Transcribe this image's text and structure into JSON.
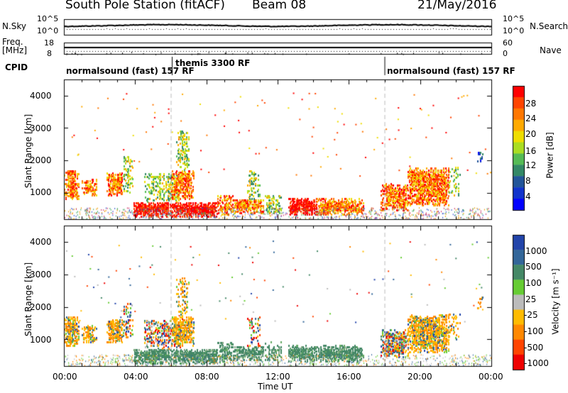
{
  "header": {
    "station": "South Pole Station (fitACF)",
    "beam": "Beam 08",
    "date": "21/May/2016"
  },
  "top_panels": {
    "nsky_label": "N.Sky",
    "nsearch_label": "N.Search",
    "noise_ticks": [
      "10^5",
      "10^0"
    ],
    "freq_label": "Freq.",
    "freq_unit": "[MHz]",
    "freq_ticks": [
      "18",
      "8"
    ],
    "nave_label": "Nave",
    "nave_ticks": [
      "60",
      "0"
    ],
    "cpid_label": "CPID",
    "cpid_segments": [
      {
        "name": "normalsound (fast) 157 RF",
        "start_hour": 0
      },
      {
        "name": "themis 3300 RF",
        "start_hour": 6.3
      },
      {
        "name": "normalsound (fast) 157 RF",
        "start_hour": 18
      }
    ]
  },
  "chart_data": [
    {
      "type": "heatmap",
      "title": "",
      "quantity": "Power",
      "ylabel": "Slant Range [km]",
      "xlabel": "",
      "xlim": [
        0,
        24
      ],
      "ylim": [
        180,
        4500
      ],
      "yticks": [
        "4000",
        "3000",
        "2000",
        "1000"
      ],
      "xticks": [
        "00:00",
        "04:00",
        "08:00",
        "12:00",
        "16:00",
        "20:00",
        "00:00"
      ],
      "colorbar": {
        "label": "Power [dB]",
        "ticks": [
          "28",
          "24",
          "20",
          "16",
          "12",
          "8",
          "4"
        ],
        "colors": [
          "#ff0000",
          "#ff4400",
          "#ff7700",
          "#ffaa00",
          "#eedd00",
          "#aadd22",
          "#55bb55",
          "#338866",
          "#225599",
          "#1133cc",
          "#0000ff"
        ]
      },
      "dashed_marker_hours": [
        6.0,
        18.0
      ]
    },
    {
      "type": "heatmap",
      "title": "",
      "quantity": "Velocity",
      "ylabel": "Slant Range [km]",
      "xlabel": "Time UT",
      "xlim": [
        0,
        24
      ],
      "ylim": [
        180,
        4500
      ],
      "yticks": [
        "4000",
        "3000",
        "2000",
        "1000"
      ],
      "xticks": [
        "00:00",
        "04:00",
        "08:00",
        "12:00",
        "16:00",
        "20:00",
        "00:00"
      ],
      "colorbar": {
        "label": "Velocity [m s⁻¹]",
        "ticks": [
          "1000",
          "500",
          "100",
          "25",
          "-25",
          "-100",
          "-500",
          "-1000"
        ],
        "colors": [
          "#2244aa",
          "#336699",
          "#448866",
          "#66cc33",
          "#bbbbbb",
          "#ffbb00",
          "#ff8800",
          "#ff4400",
          "#ee0000"
        ]
      },
      "dashed_marker_hours": [
        6.0,
        18.0
      ]
    }
  ],
  "echo_regions": [
    {
      "t0": 0.0,
      "t1": 0.8,
      "r0": 800,
      "r1": 1700,
      "p": 0.8,
      "pw": "hi",
      "vel": "neg"
    },
    {
      "t0": 1.0,
      "t1": 1.8,
      "r0": 900,
      "r1": 1400,
      "p": 0.7,
      "pw": "hi",
      "vel": "neg"
    },
    {
      "t0": 2.4,
      "t1": 3.3,
      "r0": 900,
      "r1": 1600,
      "p": 0.8,
      "pw": "hi",
      "vel": "neg"
    },
    {
      "t0": 3.3,
      "t1": 3.9,
      "r0": 1000,
      "r1": 2100,
      "p": 0.4,
      "pw": "mid",
      "vel": "mix"
    },
    {
      "t0": 3.9,
      "t1": 6.0,
      "r0": 250,
      "r1": 700,
      "p": 0.9,
      "pw": "vhi",
      "vel": "low"
    },
    {
      "t0": 4.5,
      "t1": 6.5,
      "r0": 700,
      "r1": 1600,
      "p": 0.35,
      "pw": "mid",
      "vel": "mix"
    },
    {
      "t0": 6.0,
      "t1": 7.3,
      "r0": 800,
      "r1": 1700,
      "p": 0.7,
      "pw": "hi",
      "vel": "neg"
    },
    {
      "t0": 6.3,
      "t1": 7.0,
      "r0": 1700,
      "r1": 2900,
      "p": 0.4,
      "pw": "mid",
      "vel": "neg"
    },
    {
      "t0": 6.0,
      "t1": 8.6,
      "r0": 250,
      "r1": 700,
      "p": 0.9,
      "pw": "vhi",
      "vel": "low"
    },
    {
      "t0": 8.6,
      "t1": 9.5,
      "r0": 300,
      "r1": 900,
      "p": 0.6,
      "pw": "hi",
      "vel": "low"
    },
    {
      "t0": 9.5,
      "t1": 11.2,
      "r0": 350,
      "r1": 800,
      "p": 0.8,
      "pw": "hi",
      "vel": "low"
    },
    {
      "t0": 10.3,
      "t1": 11.0,
      "r0": 800,
      "r1": 1700,
      "p": 0.3,
      "pw": "mid",
      "vel": "mix"
    },
    {
      "t0": 11.3,
      "t1": 12.2,
      "r0": 350,
      "r1": 900,
      "p": 0.5,
      "pw": "mid",
      "vel": "low"
    },
    {
      "t0": 12.6,
      "t1": 14.2,
      "r0": 300,
      "r1": 800,
      "p": 0.8,
      "pw": "vhi",
      "vel": "low"
    },
    {
      "t0": 14.2,
      "t1": 16.8,
      "r0": 300,
      "r1": 800,
      "p": 0.8,
      "pw": "hi",
      "vel": "low"
    },
    {
      "t0": 17.8,
      "t1": 19.3,
      "r0": 450,
      "r1": 1300,
      "p": 0.7,
      "pw": "hi",
      "vel": "mix"
    },
    {
      "t0": 19.3,
      "t1": 21.6,
      "r0": 600,
      "r1": 1750,
      "p": 0.75,
      "pw": "hi",
      "vel": "neg"
    },
    {
      "t0": 21.6,
      "t1": 22.2,
      "r0": 900,
      "r1": 1800,
      "p": 0.25,
      "pw": "mid",
      "vel": "neg"
    },
    {
      "t0": 23.2,
      "t1": 23.5,
      "r0": 1950,
      "r1": 2300,
      "p": 0.6,
      "pw": "lo",
      "vel": "neg"
    }
  ]
}
